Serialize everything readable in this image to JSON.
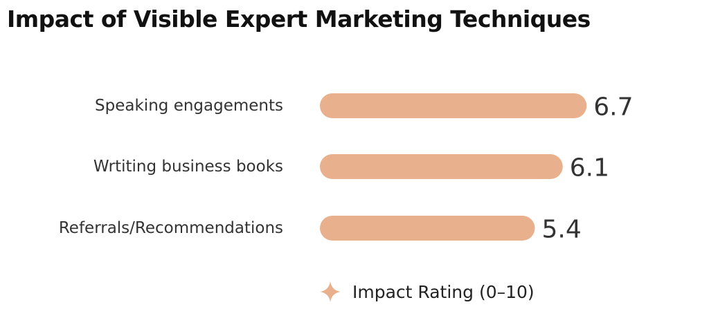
{
  "title": "Impact of Visible Expert Marketing Techniques",
  "legend": {
    "label": "Impact Rating (0–10)",
    "marker": "sparkle-icon"
  },
  "colors": {
    "bar": "#E8B08C",
    "text": "#333333",
    "title": "#111111"
  },
  "chart_data": {
    "type": "bar",
    "orientation": "horizontal",
    "title": "Impact of Visible Expert Marketing Techniques",
    "categories": [
      "Speaking engagements",
      "Wrtiting business books",
      "Referrals/Recommendations"
    ],
    "series": [
      {
        "name": "Impact Rating (0–10)",
        "values": [
          6.7,
          6.1,
          5.4
        ]
      }
    ],
    "value_labels": [
      "6.7",
      "6.1",
      "5.4"
    ],
    "xlim": [
      0,
      10
    ],
    "grid": false,
    "legend_position": "bottom"
  }
}
